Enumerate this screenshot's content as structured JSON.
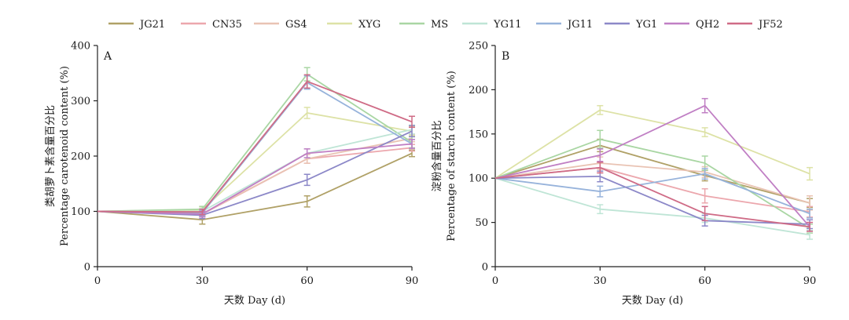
{
  "series_colors": {
    "JG21": "#b0a167",
    "CN35": "#eca7ad",
    "GS4": "#e9c3b3",
    "XYG": "#dde2a6",
    "MS": "#a9d6a3",
    "YG11": "#bfe5d6",
    "JG11": "#97b3db",
    "YG1": "#8c88c8",
    "QH2": "#c07fc4",
    "JF52": "#cf6b86"
  },
  "legend": [
    "JG21",
    "CN35",
    "GS4",
    "XYG",
    "MS",
    "YG11",
    "JG11",
    "YG1",
    "QH2",
    "JF52"
  ],
  "chart_data": [
    {
      "type": "line",
      "panel_label": "A",
      "title": "",
      "xlabel": "天数 Day (d)",
      "ylabel": [
        "类胡萝卜素含量百分比",
        "Percentage carotenoid content (%)"
      ],
      "x": [
        0,
        30,
        60,
        90
      ],
      "x_ticks": [
        "0",
        "30",
        "60",
        "90"
      ],
      "y_ticks": [
        "0",
        "100",
        "200",
        "300",
        "400"
      ],
      "xlim": [
        0,
        90
      ],
      "ylim": [
        0,
        400
      ],
      "series": [
        {
          "name": "JG21",
          "values": [
            100,
            85,
            118,
            205
          ],
          "errors": [
            0,
            8,
            10,
            6
          ]
        },
        {
          "name": "CN35",
          "values": [
            100,
            95,
            195,
            215
          ],
          "errors": [
            0,
            5,
            8,
            6
          ]
        },
        {
          "name": "GS4",
          "values": [
            100,
            96,
            195,
            232
          ],
          "errors": [
            0,
            5,
            8,
            6
          ]
        },
        {
          "name": "XYG",
          "values": [
            100,
            103,
            278,
            245
          ],
          "errors": [
            0,
            5,
            10,
            8
          ]
        },
        {
          "name": "MS",
          "values": [
            100,
            104,
            348,
            225
          ],
          "errors": [
            0,
            5,
            12,
            10
          ]
        },
        {
          "name": "YG11",
          "values": [
            100,
            100,
            205,
            248
          ],
          "errors": [
            0,
            5,
            8,
            8
          ]
        },
        {
          "name": "JG11",
          "values": [
            100,
            97,
            333,
            222
          ],
          "errors": [
            0,
            5,
            12,
            8
          ]
        },
        {
          "name": "YG1",
          "values": [
            100,
            93,
            157,
            245
          ],
          "errors": [
            0,
            6,
            10,
            10
          ]
        },
        {
          "name": "QH2",
          "values": [
            100,
            95,
            205,
            222
          ],
          "errors": [
            0,
            5,
            8,
            8
          ]
        },
        {
          "name": "JF52",
          "values": [
            100,
            99,
            335,
            262
          ],
          "errors": [
            0,
            5,
            12,
            10
          ]
        }
      ]
    },
    {
      "type": "line",
      "panel_label": "B",
      "title": "",
      "xlabel": "天数 Day (d)",
      "ylabel": [
        "淀粉含量百分比",
        "Percentage of starch content (%)"
      ],
      "x": [
        0,
        30,
        60,
        90
      ],
      "x_ticks": [
        "0",
        "30",
        "60",
        "90"
      ],
      "y_ticks": [
        "0",
        "50",
        "100",
        "150",
        "200",
        "250"
      ],
      "xlim": [
        0,
        90
      ],
      "ylim": [
        0,
        250
      ],
      "series": [
        {
          "name": "JG21",
          "values": [
            100,
            137,
            103,
            72
          ],
          "errors": [
            0,
            7,
            6,
            5
          ]
        },
        {
          "name": "CN35",
          "values": [
            100,
            112,
            80,
            62
          ],
          "errors": [
            0,
            6,
            8,
            6
          ]
        },
        {
          "name": "GS4",
          "values": [
            100,
            117,
            107,
            72
          ],
          "errors": [
            0,
            7,
            6,
            8
          ]
        },
        {
          "name": "XYG",
          "values": [
            100,
            177,
            152,
            105
          ],
          "errors": [
            0,
            5,
            5,
            7
          ]
        },
        {
          "name": "MS",
          "values": [
            100,
            144,
            117,
            43
          ],
          "errors": [
            0,
            10,
            8,
            5
          ]
        },
        {
          "name": "YG11",
          "values": [
            100,
            65,
            55,
            36
          ],
          "errors": [
            0,
            5,
            5,
            5
          ]
        },
        {
          "name": "JG11",
          "values": [
            100,
            85,
            105,
            60
          ],
          "errors": [
            0,
            6,
            6,
            5
          ]
        },
        {
          "name": "YG1",
          "values": [
            100,
            102,
            52,
            48
          ],
          "errors": [
            0,
            6,
            6,
            5
          ]
        },
        {
          "name": "QH2",
          "values": [
            100,
            126,
            182,
            45
          ],
          "errors": [
            0,
            7,
            8,
            5
          ]
        },
        {
          "name": "JF52",
          "values": [
            100,
            112,
            60,
            45
          ],
          "errors": [
            0,
            6,
            8,
            5
          ]
        }
      ]
    }
  ]
}
